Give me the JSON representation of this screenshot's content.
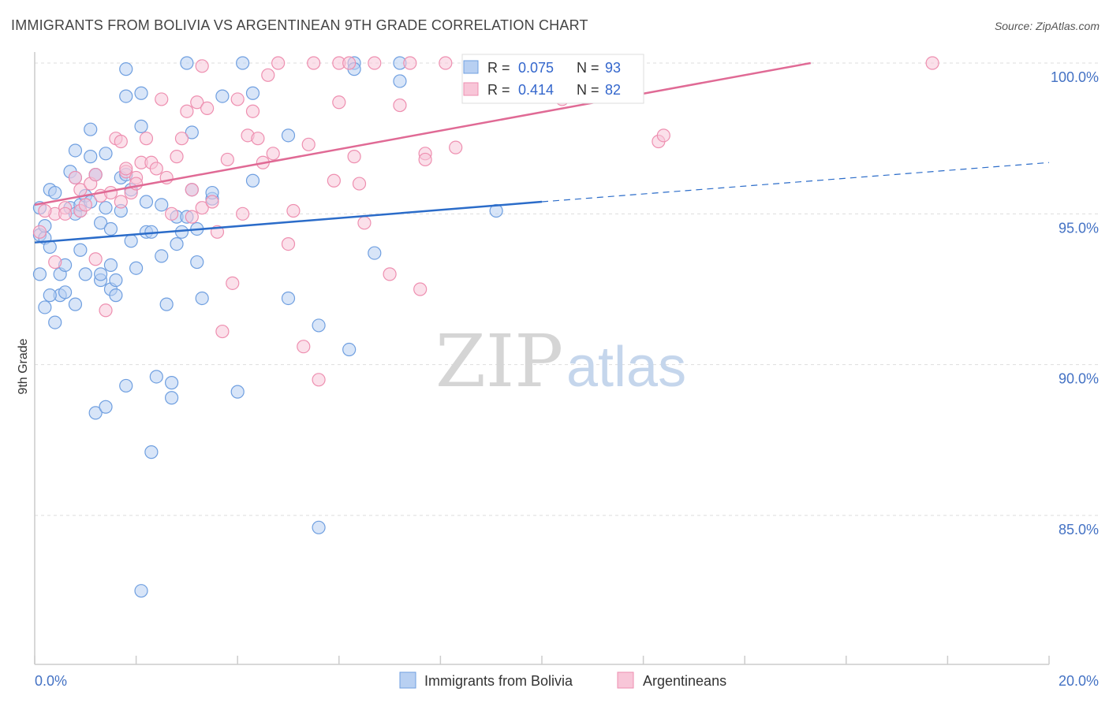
{
  "chart_data": {
    "type": "scatter",
    "title": "IMMIGRANTS FROM BOLIVIA VS ARGENTINEAN 9TH GRADE CORRELATION CHART",
    "source": "Source: ZipAtlas.com",
    "ylabel": "9th Grade",
    "xlabel": "",
    "xlim": [
      0,
      20
    ],
    "ylim": [
      80.5,
      100.8
    ],
    "x_tick_labels": [
      "0.0%",
      "20.0%"
    ],
    "y_ticks": [
      {
        "value": 85,
        "label": "85.0%"
      },
      {
        "value": 90,
        "label": "90.0%"
      },
      {
        "value": 95,
        "label": "95.0%"
      },
      {
        "value": 100,
        "label": "100.0%"
      }
    ],
    "grid": "horizontal dashed",
    "watermark": {
      "zip": "ZIP",
      "atlas": "atlas"
    },
    "legend": {
      "placement": "top-center",
      "rows": [
        {
          "r_label": "R =",
          "r_value": "0.075",
          "n_label": "N =",
          "n_value": "93"
        },
        {
          "r_label": "R =",
          "r_value": "0.414",
          "n_label": "N =",
          "n_value": "82"
        }
      ]
    },
    "series": [
      {
        "name": "Immigrants from Bolivia",
        "color": "#6f9fe0",
        "fill": "#b8d0f2",
        "trend_color": "#2b6cc9",
        "trend": {
          "x0": 0,
          "y0": 94.05,
          "x1": 10,
          "y1": 95.4,
          "dash_to_x": 20,
          "dash_to_y": 96.7
        },
        "points": [
          [
            0.1,
            95.2
          ],
          [
            0.1,
            94.3
          ],
          [
            0.2,
            94.2
          ],
          [
            0.3,
            93.9
          ],
          [
            0.1,
            93.0
          ],
          [
            0.3,
            95.8
          ],
          [
            0.4,
            95.7
          ],
          [
            0.5,
            93.0
          ],
          [
            0.5,
            92.3
          ],
          [
            0.2,
            91.9
          ],
          [
            0.4,
            91.4
          ],
          [
            0.6,
            92.4
          ],
          [
            0.6,
            93.3
          ],
          [
            0.7,
            95.2
          ],
          [
            0.7,
            96.4
          ],
          [
            0.8,
            96.2
          ],
          [
            0.8,
            95.0
          ],
          [
            0.8,
            97.1
          ],
          [
            0.8,
            92.0
          ],
          [
            0.9,
            93.8
          ],
          [
            0.9,
            95.1
          ],
          [
            0.9,
            95.3
          ],
          [
            1.0,
            93.0
          ],
          [
            1.0,
            95.6
          ],
          [
            1.1,
            96.9
          ],
          [
            1.1,
            97.8
          ],
          [
            1.1,
            95.4
          ],
          [
            1.2,
            96.3
          ],
          [
            1.2,
            96.3
          ],
          [
            1.3,
            94.7
          ],
          [
            1.3,
            92.8
          ],
          [
            1.3,
            93.0
          ],
          [
            1.4,
            95.2
          ],
          [
            1.4,
            97.0
          ],
          [
            1.5,
            94.5
          ],
          [
            1.5,
            93.3
          ],
          [
            1.5,
            92.5
          ],
          [
            1.6,
            92.8
          ],
          [
            1.6,
            92.3
          ],
          [
            1.7,
            96.2
          ],
          [
            1.8,
            96.3
          ],
          [
            1.8,
            98.9
          ],
          [
            1.8,
            99.8
          ],
          [
            1.9,
            94.1
          ],
          [
            1.9,
            95.8
          ],
          [
            2.0,
            93.2
          ],
          [
            2.1,
            97.9
          ],
          [
            2.1,
            99.0
          ],
          [
            2.2,
            94.4
          ],
          [
            2.2,
            95.4
          ],
          [
            2.3,
            94.4
          ],
          [
            2.4,
            89.6
          ],
          [
            2.5,
            95.3
          ],
          [
            2.5,
            93.6
          ],
          [
            2.6,
            92.0
          ],
          [
            2.7,
            89.4
          ],
          [
            2.7,
            88.9
          ],
          [
            2.8,
            94.9
          ],
          [
            2.8,
            94.0
          ],
          [
            2.9,
            94.4
          ],
          [
            3.0,
            100.0
          ],
          [
            3.0,
            94.9
          ],
          [
            3.1,
            95.8
          ],
          [
            3.1,
            97.7
          ],
          [
            3.2,
            94.5
          ],
          [
            3.2,
            93.4
          ],
          [
            3.3,
            92.2
          ],
          [
            3.5,
            95.5
          ],
          [
            3.5,
            95.7
          ],
          [
            3.7,
            98.9
          ],
          [
            4.1,
            100.0
          ],
          [
            4.3,
            99.0
          ],
          [
            4.3,
            96.1
          ],
          [
            5.0,
            97.6
          ],
          [
            5.0,
            92.2
          ],
          [
            5.6,
            91.3
          ],
          [
            5.6,
            84.6
          ],
          [
            6.2,
            90.5
          ],
          [
            6.3,
            100.0
          ],
          [
            6.3,
            99.8
          ],
          [
            6.7,
            93.7
          ],
          [
            7.2,
            99.4
          ],
          [
            7.2,
            100.0
          ],
          [
            9.1,
            95.1
          ],
          [
            2.3,
            87.1
          ],
          [
            2.1,
            82.5
          ],
          [
            4.0,
            89.1
          ],
          [
            1.2,
            88.4
          ],
          [
            1.4,
            88.6
          ],
          [
            1.8,
            89.3
          ],
          [
            0.2,
            94.6
          ],
          [
            0.3,
            92.3
          ],
          [
            1.7,
            95.1
          ]
        ]
      },
      {
        "name": "Argentineans",
        "color": "#ee8fb0",
        "fill": "#f8c6d8",
        "trend_color": "#e06a95",
        "trend": {
          "x0": 0,
          "y0": 95.3,
          "x1": 15.3,
          "y1": 100.0
        },
        "points": [
          [
            0.1,
            94.4
          ],
          [
            0.4,
            95.0
          ],
          [
            0.4,
            93.4
          ],
          [
            0.6,
            95.2
          ],
          [
            0.6,
            95.0
          ],
          [
            0.8,
            96.2
          ],
          [
            0.9,
            95.8
          ],
          [
            0.9,
            95.1
          ],
          [
            1.0,
            95.3
          ],
          [
            1.1,
            96.0
          ],
          [
            1.2,
            96.3
          ],
          [
            1.2,
            93.5
          ],
          [
            1.3,
            95.6
          ],
          [
            1.4,
            91.8
          ],
          [
            1.5,
            95.7
          ],
          [
            1.6,
            97.5
          ],
          [
            1.7,
            97.4
          ],
          [
            1.8,
            96.4
          ],
          [
            1.8,
            96.5
          ],
          [
            1.9,
            95.7
          ],
          [
            2.0,
            96.2
          ],
          [
            2.0,
            96.0
          ],
          [
            2.1,
            96.7
          ],
          [
            2.2,
            97.5
          ],
          [
            2.3,
            96.7
          ],
          [
            2.4,
            96.5
          ],
          [
            2.5,
            98.8
          ],
          [
            2.6,
            96.2
          ],
          [
            2.7,
            95.0
          ],
          [
            2.8,
            96.9
          ],
          [
            2.9,
            97.5
          ],
          [
            3.0,
            98.4
          ],
          [
            3.1,
            95.8
          ],
          [
            3.1,
            94.9
          ],
          [
            3.2,
            98.7
          ],
          [
            3.3,
            99.9
          ],
          [
            3.3,
            95.2
          ],
          [
            3.4,
            98.5
          ],
          [
            3.5,
            95.4
          ],
          [
            3.6,
            94.4
          ],
          [
            3.7,
            91.1
          ],
          [
            3.8,
            96.8
          ],
          [
            3.9,
            92.7
          ],
          [
            4.0,
            98.8
          ],
          [
            4.1,
            95.0
          ],
          [
            4.2,
            97.6
          ],
          [
            4.3,
            98.4
          ],
          [
            4.4,
            97.5
          ],
          [
            4.5,
            96.7
          ],
          [
            4.6,
            99.6
          ],
          [
            4.7,
            97.0
          ],
          [
            4.8,
            100.0
          ],
          [
            5.0,
            94.0
          ],
          [
            5.1,
            95.1
          ],
          [
            5.3,
            90.6
          ],
          [
            5.4,
            97.3
          ],
          [
            5.5,
            100.0
          ],
          [
            5.6,
            89.5
          ],
          [
            5.9,
            96.1
          ],
          [
            6.0,
            98.7
          ],
          [
            6.0,
            100.0
          ],
          [
            6.2,
            100.0
          ],
          [
            6.3,
            96.9
          ],
          [
            6.4,
            96.0
          ],
          [
            6.5,
            94.7
          ],
          [
            6.7,
            100.0
          ],
          [
            7.0,
            93.0
          ],
          [
            7.2,
            98.6
          ],
          [
            7.4,
            100.0
          ],
          [
            7.6,
            92.5
          ],
          [
            7.7,
            97.0
          ],
          [
            7.7,
            96.8
          ],
          [
            8.1,
            100.0
          ],
          [
            8.3,
            97.2
          ],
          [
            9.0,
            100.0
          ],
          [
            9.2,
            100.0
          ],
          [
            10.4,
            98.8
          ],
          [
            12.3,
            97.4
          ],
          [
            12.4,
            97.6
          ],
          [
            17.7,
            100.0
          ],
          [
            1.7,
            95.4
          ],
          [
            0.2,
            95.1
          ]
        ]
      }
    ]
  }
}
